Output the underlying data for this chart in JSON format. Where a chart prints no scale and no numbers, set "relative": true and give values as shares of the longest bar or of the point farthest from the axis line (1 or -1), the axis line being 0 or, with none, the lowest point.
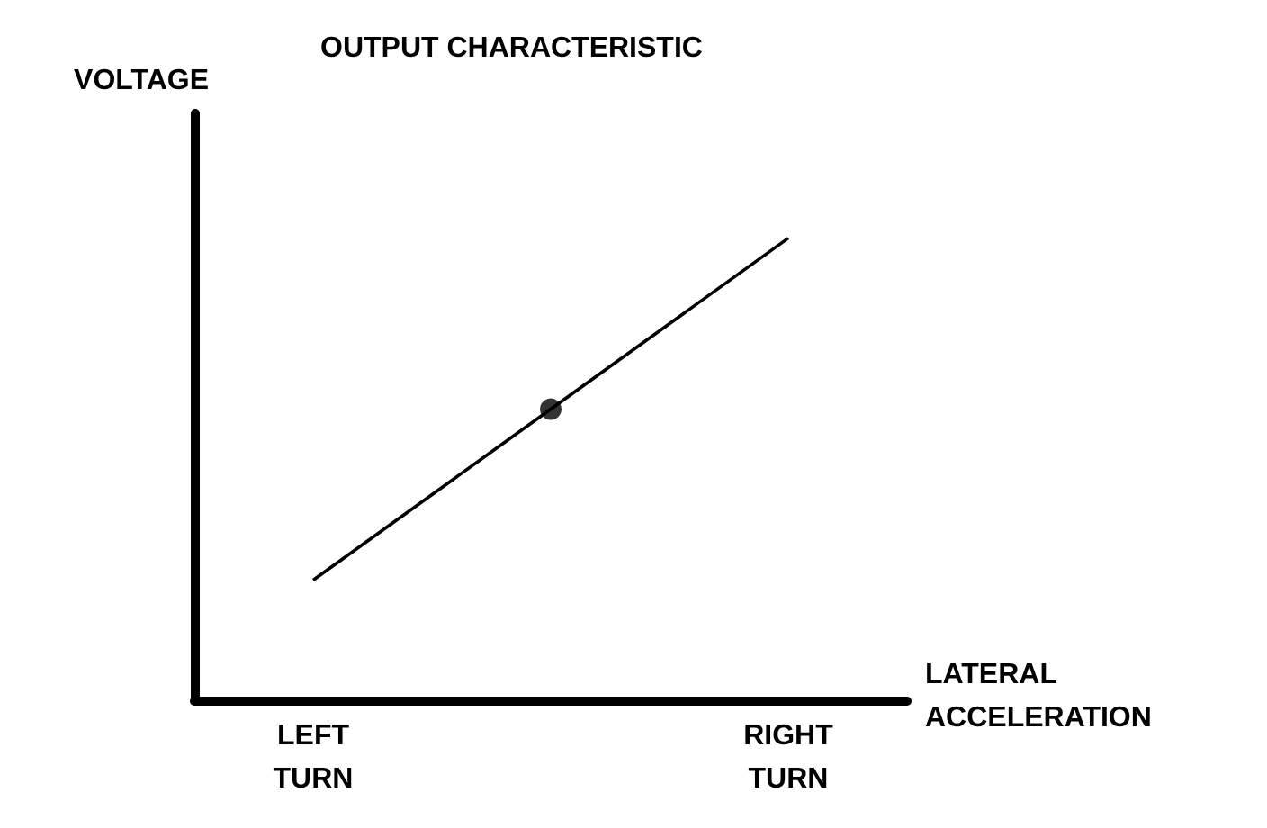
{
  "chart_data": {
    "type": "line",
    "title": "OUTPUT CHARACTERISTIC",
    "xlabel": "LATERAL ACCELERATION",
    "ylabel": "VOLTAGE",
    "relative": true,
    "categories": [
      "LEFT TURN",
      null,
      "RIGHT TURN"
    ],
    "series": [
      {
        "color": "#000000",
        "marker": "none",
        "values": [
          0.26,
          0.63,
          1
        ]
      },
      {
        "type": "scatter",
        "color": "#000000",
        "marker": "circle",
        "values": [
          null,
          0.63,
          null
        ]
      }
    ],
    "grid": false
  }
}
